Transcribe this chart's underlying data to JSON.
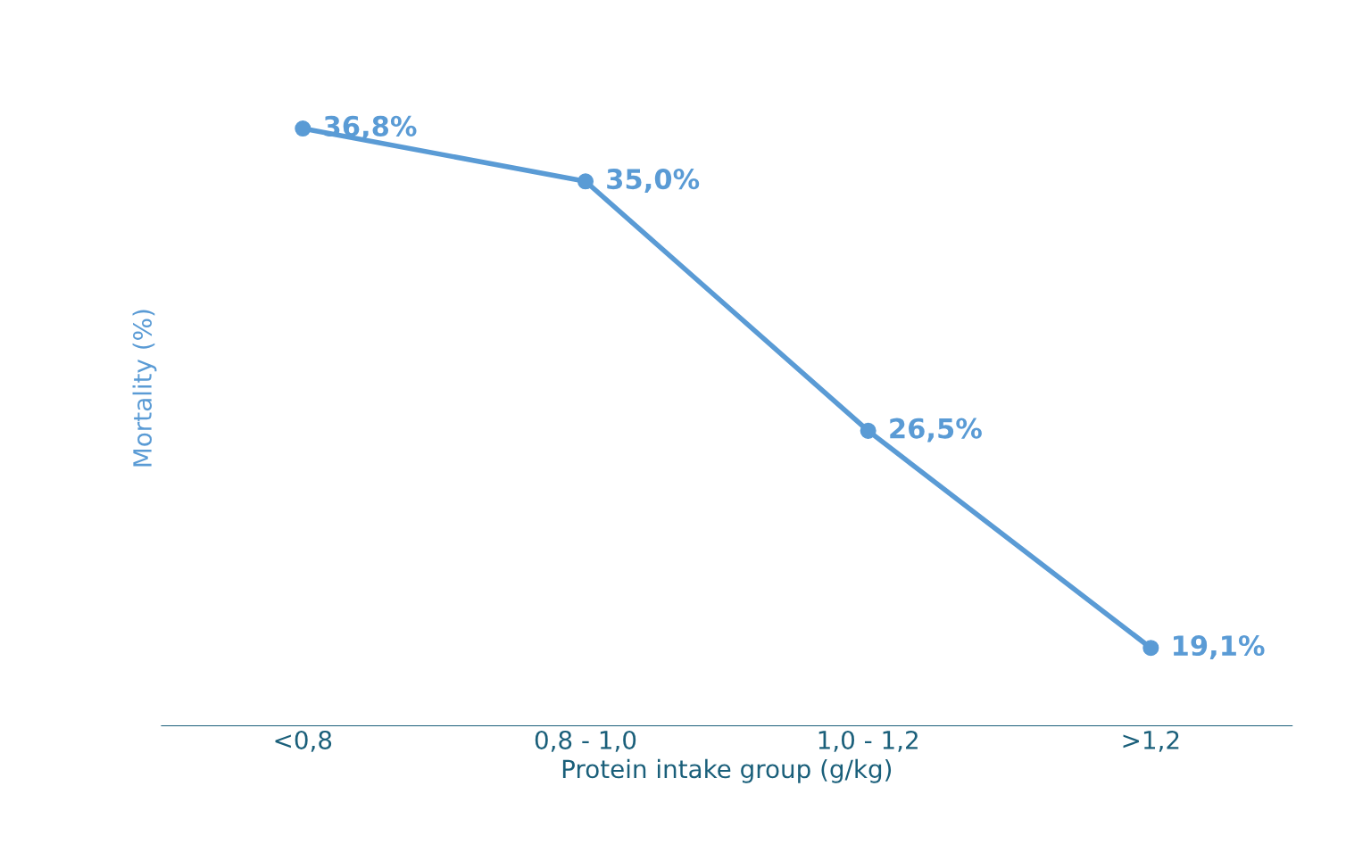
{
  "chart_data": {
    "type": "line",
    "xlabel": "Protein intake group (g/kg)",
    "ylabel": "Mortality (%)",
    "categories": [
      "<0,8",
      "0,8 - 1,0",
      "1,0 - 1,2",
      ">1,2"
    ],
    "series": [
      {
        "color": "#5a9bd5",
        "values": [
          36.8,
          35.0,
          26.5,
          19.1
        ],
        "value_labels": [
          "36,8%",
          "35,0%",
          "26,5%",
          "19,1%"
        ]
      }
    ],
    "tick_labels": "x",
    "marker": "circle",
    "line_style": "solid",
    "grid": false,
    "legend": false
  }
}
